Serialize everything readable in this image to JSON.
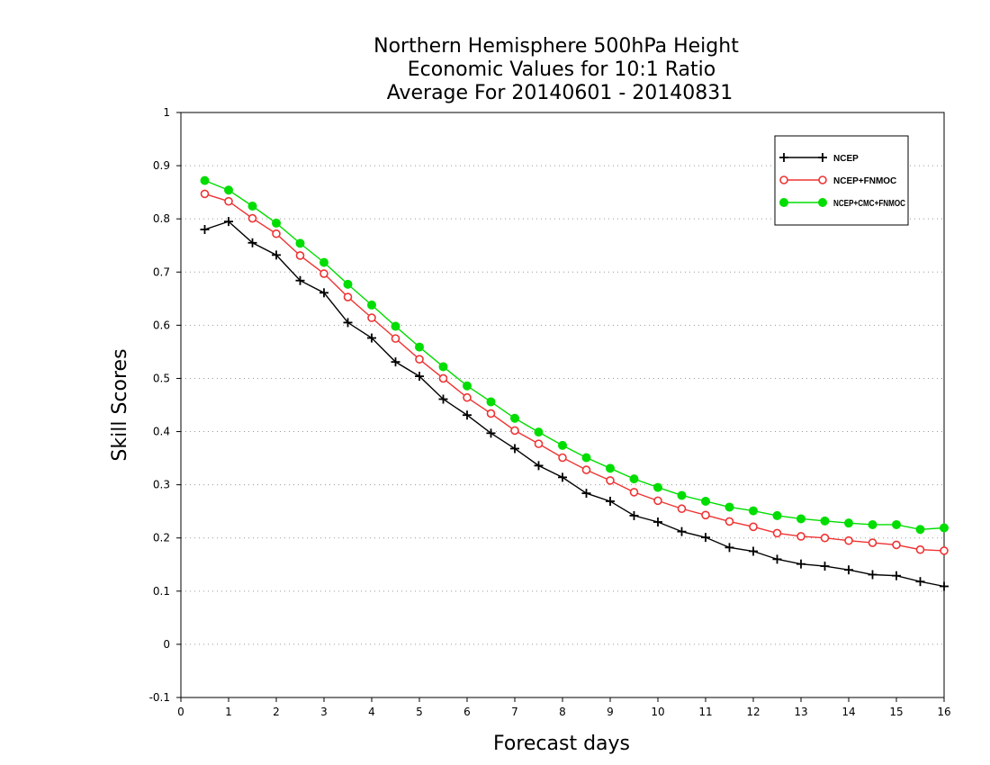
{
  "chart_data": {
    "type": "line",
    "title": [
      "Northern Hemisphere 500hPa Height",
      "Economic Values for 10:1 Ratio",
      "Average For 20140601 - 20140831"
    ],
    "xlabel": "Forecast days",
    "ylabel": "Skill Scores",
    "xlim": [
      0,
      16
    ],
    "ylim": [
      -0.1,
      1
    ],
    "xticks": [
      0,
      1,
      2,
      3,
      4,
      5,
      6,
      7,
      8,
      9,
      10,
      11,
      12,
      13,
      14,
      15,
      16
    ],
    "yticks": [
      -0.1,
      0,
      0.1,
      0.2,
      0.3,
      0.4,
      0.5,
      0.6,
      0.7,
      0.8,
      0.9,
      1
    ],
    "ytick_labels": [
      "-0.1",
      "0",
      "0.1",
      "0.2",
      "0.3",
      "0.4",
      "0.5",
      "0.6",
      "0.7",
      "0.8",
      "0.9",
      "1"
    ],
    "grid": "horizontal dotted",
    "legend_position": "top-right",
    "x": [
      0.5,
      1,
      1.5,
      2,
      2.5,
      3,
      3.5,
      4,
      4.5,
      5,
      5.5,
      6,
      6.5,
      7,
      7.5,
      8,
      8.5,
      9,
      9.5,
      10,
      10.5,
      11,
      11.5,
      12,
      12.5,
      13,
      13.5,
      14,
      14.5,
      15,
      15.5,
      16
    ],
    "series": [
      {
        "name": "NCEP",
        "color": "#000000",
        "marker": "plus",
        "values": [
          0.78,
          0.795,
          0.755,
          0.732,
          0.684,
          0.661,
          0.605,
          0.576,
          0.531,
          0.504,
          0.461,
          0.431,
          0.397,
          0.368,
          0.336,
          0.314,
          0.284,
          0.269,
          0.242,
          0.23,
          0.212,
          0.201,
          0.182,
          0.175,
          0.16,
          0.151,
          0.147,
          0.14,
          0.131,
          0.129,
          0.118,
          0.109
        ]
      },
      {
        "name": "NCEP+FNMOC",
        "color": "#ee3333",
        "marker": "open-circle",
        "values": [
          0.847,
          0.833,
          0.801,
          0.772,
          0.731,
          0.697,
          0.653,
          0.614,
          0.575,
          0.536,
          0.5,
          0.464,
          0.434,
          0.402,
          0.377,
          0.351,
          0.328,
          0.308,
          0.286,
          0.27,
          0.255,
          0.243,
          0.231,
          0.221,
          0.209,
          0.203,
          0.2,
          0.195,
          0.191,
          0.187,
          0.178,
          0.176
        ]
      },
      {
        "name": "NCEP+CMC+FNMOC",
        "color": "#00dd00",
        "marker": "filled-circle",
        "values": [
          0.872,
          0.854,
          0.824,
          0.792,
          0.754,
          0.718,
          0.677,
          0.638,
          0.598,
          0.559,
          0.522,
          0.486,
          0.456,
          0.425,
          0.399,
          0.374,
          0.351,
          0.331,
          0.311,
          0.295,
          0.28,
          0.269,
          0.258,
          0.251,
          0.242,
          0.236,
          0.232,
          0.228,
          0.225,
          0.225,
          0.216,
          0.219
        ]
      }
    ]
  }
}
